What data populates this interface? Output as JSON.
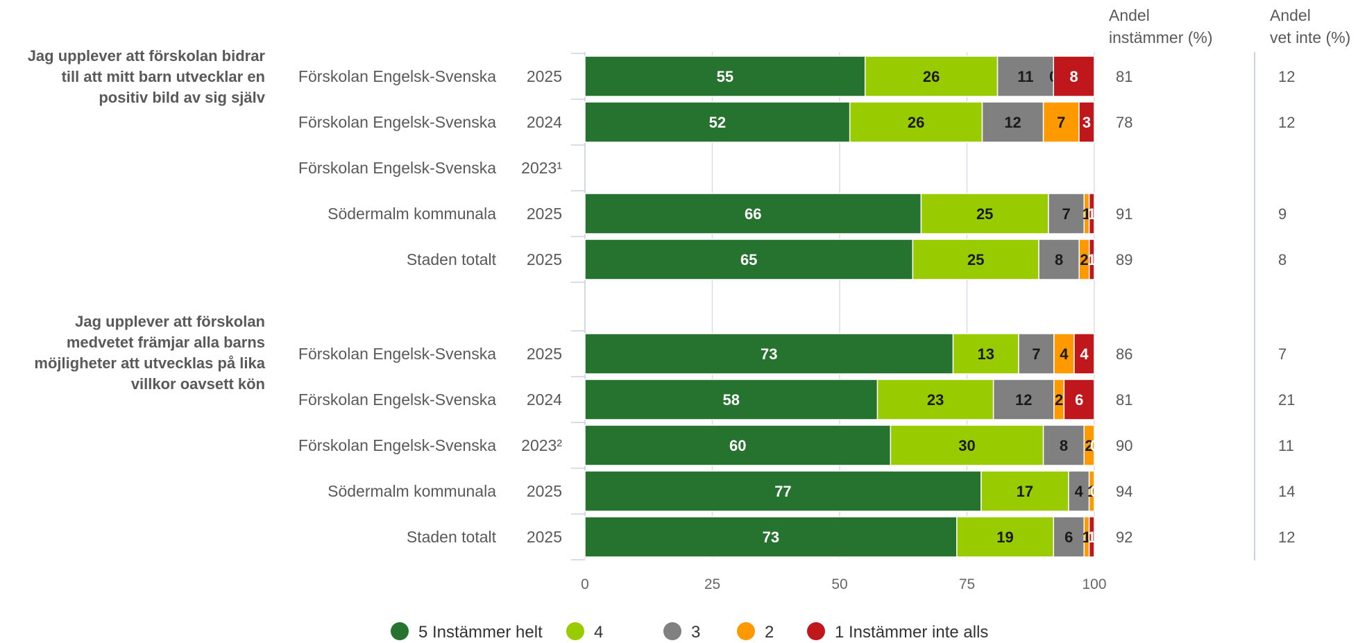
{
  "chart_data": {
    "type": "bar",
    "orientation": "horizontal",
    "stacked": true,
    "xlim": [
      0,
      100
    ],
    "xticks": [
      "0",
      "25",
      "50",
      "75",
      "100"
    ],
    "grid": true,
    "legend_position": "bottom",
    "categories": [
      "5 Instämmer helt",
      "4",
      "3",
      "2",
      "1 Instämmer inte alls"
    ],
    "colors": [
      "#25732f",
      "#99cc00",
      "#808080",
      "#ff9900",
      "#c0171d"
    ],
    "label_colors": [
      "#ffffff",
      "#1a1a1a",
      "#1a1a1a",
      "#1a1a1a",
      "#ffffff"
    ],
    "side_headers": {
      "agree": [
        "Andel",
        "instämmer (%)"
      ],
      "dontknow": [
        "Andel",
        "vet inte (%)"
      ]
    },
    "groups": [
      {
        "question": [
          "Jag upplever att förskolan bidrar",
          "till att mitt barn utvecklar en",
          "positiv bild av sig själv"
        ],
        "rows": [
          {
            "unit": "Förskolan Engelsk-Svenska",
            "year": "2025",
            "values": [
              55,
              26,
              11,
              0,
              8
            ],
            "labels": [
              "55",
              "26",
              "11",
              "0",
              "8"
            ],
            "agree": "81",
            "dontknow": "12"
          },
          {
            "unit": "Förskolan Engelsk-Svenska",
            "year": "2024",
            "values": [
              52,
              26,
              12,
              7,
              3
            ],
            "labels": [
              "52",
              "26",
              "12",
              "7",
              "3"
            ],
            "agree": "78",
            "dontknow": "12"
          },
          {
            "unit": "Förskolan Engelsk-Svenska",
            "year": "2023¹",
            "values": [],
            "labels": [],
            "agree": "",
            "dontknow": ""
          },
          {
            "unit": "Södermalm kommunala",
            "year": "2025",
            "values": [
              66,
              25,
              7,
              1,
              1
            ],
            "labels": [
              "66",
              "25",
              "7",
              "1",
              "1"
            ],
            "agree": "91",
            "dontknow": "9"
          },
          {
            "unit": "Staden totalt",
            "year": "2025",
            "values": [
              65,
              25,
              8,
              2,
              1
            ],
            "labels": [
              "65",
              "25",
              "8",
              "2",
              "1"
            ],
            "agree": "89",
            "dontknow": "8"
          }
        ]
      },
      {
        "question": [
          "Jag upplever att förskolan",
          "medvetet främjar alla barns",
          "möjligheter att utvecklas på lika",
          "villkor oavsett kön"
        ],
        "rows": [
          {
            "unit": "Förskolan Engelsk-Svenska",
            "year": "2025",
            "values": [
              73,
              13,
              7,
              4,
              4
            ],
            "labels": [
              "73",
              "13",
              "7",
              "4",
              "4"
            ],
            "agree": "86",
            "dontknow": "7"
          },
          {
            "unit": "Förskolan Engelsk-Svenska",
            "year": "2024",
            "values": [
              58,
              23,
              12,
              2,
              6
            ],
            "labels": [
              "58",
              "23",
              "12",
              "2",
              "6"
            ],
            "agree": "81",
            "dontknow": "21"
          },
          {
            "unit": "Förskolan Engelsk-Svenska",
            "year": "2023²",
            "values": [
              60,
              30,
              8,
              2,
              0
            ],
            "labels": [
              "60",
              "30",
              "8",
              "2",
              "0"
            ],
            "agree": "90",
            "dontknow": "11"
          },
          {
            "unit": "Södermalm kommunala",
            "year": "2025",
            "values": [
              77,
              17,
              4,
              1,
              0
            ],
            "labels": [
              "77",
              "17",
              "4",
              "1",
              "0"
            ],
            "agree": "94",
            "dontknow": "14"
          },
          {
            "unit": "Staden totalt",
            "year": "2025",
            "values": [
              73,
              19,
              6,
              1,
              1
            ],
            "labels": [
              "73",
              "19",
              "6",
              "1",
              "1"
            ],
            "agree": "92",
            "dontknow": "12"
          }
        ]
      }
    ]
  }
}
